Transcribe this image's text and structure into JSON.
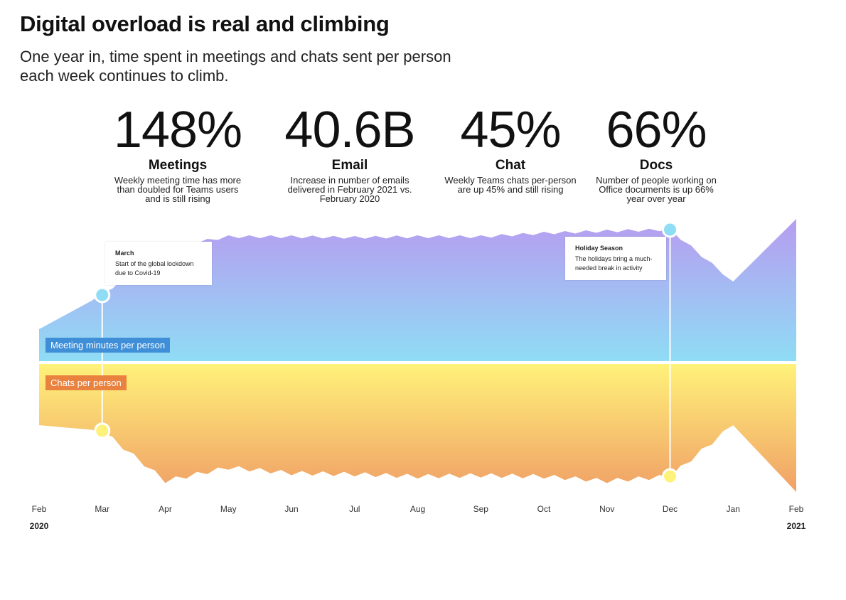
{
  "header": {
    "title": "Digital overload is real and climbing",
    "subtitle": "One year in, time spent in meetings and chats sent per person each week continues to climb."
  },
  "stats": [
    {
      "value": "148%",
      "label": "Meetings",
      "desc": "Weekly meeting time has more than doubled for Teams users and is still rising"
    },
    {
      "value": "40.6B",
      "label": "Email",
      "desc": "Increase in number of emails delivered in February 2021 vs. February 2020"
    },
    {
      "value": "45%",
      "label": "Chat",
      "desc": "Weekly Teams chats per-person are up 45% and still rising"
    },
    {
      "value": "66%",
      "label": "Docs",
      "desc": "Number of people working on Office documents is up 66% year over year"
    }
  ],
  "callouts": {
    "march": {
      "title": "March",
      "text": "Start of the global lockdown due to Covid-19"
    },
    "holiday": {
      "title": "Holiday Season",
      "text": "The holidays bring a much-needed break in activity"
    }
  },
  "colors": {
    "meeting_top": "#b79cf0",
    "meeting_bottom": "#8fdcf5",
    "chat_top": "#fff27a",
    "chat_bottom": "#f0a066",
    "meeting_tag": "#3f8fd8",
    "chat_tag": "#e8823e"
  },
  "chart_data": {
    "type": "area",
    "x": [
      "Feb 2020",
      "Mar",
      "Apr",
      "May",
      "Jun",
      "Jul",
      "Aug",
      "Sep",
      "Oct",
      "Nov",
      "Dec",
      "Jan",
      "Feb 2021"
    ],
    "axis_labels": [
      "Feb",
      "Mar",
      "Apr",
      "May",
      "Jun",
      "Jul",
      "Aug",
      "Sep",
      "Oct",
      "Nov",
      "Dec",
      "Jan",
      "Feb"
    ],
    "year_labels": {
      "start": "2020",
      "end": "2021"
    },
    "series": [
      {
        "name": "Meeting minutes per person",
        "values": [
          0.45,
          0.93,
          1.6,
          1.75,
          1.75,
          1.74,
          1.75,
          1.75,
          1.8,
          1.83,
          1.85,
          1.12,
          2.0
        ]
      },
      {
        "name": "Chats per person",
        "values": [
          0.55,
          0.6,
          1.05,
          0.93,
          0.98,
          0.99,
          1.01,
          1.0,
          1.01,
          1.05,
          1.01,
          0.55,
          1.15
        ]
      }
    ],
    "markers": [
      {
        "month_index": 1,
        "series": "both"
      },
      {
        "month_index": 10.0,
        "series": "both"
      }
    ],
    "grid": false,
    "legend": "inline-left"
  }
}
